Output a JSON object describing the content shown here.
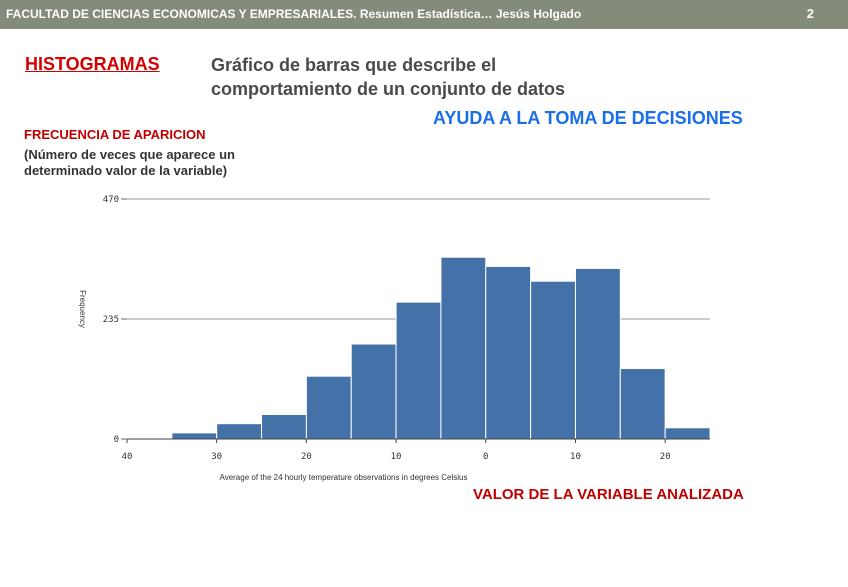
{
  "header": {
    "title": "FACULTAD DE CIENCIAS ECONOMICAS Y EMPRESARIALES. Resumen Estadística…  Jesús Holgado",
    "page": "2"
  },
  "slide": {
    "title": "HISTOGRAMAS",
    "subtitle_line1": "Gráfico de barras que describe el",
    "subtitle_line2": "comportamiento de un conjunto de datos",
    "ayuda": "AYUDA A LA TOMA DE DECISIONES",
    "freq_label": "FRECUENCIA DE APARICION",
    "freq_desc": "(Número de veces que aparece un determinado valor de la variable)",
    "valor_label": "VALOR DE LA VARIABLE ANALIZADA"
  },
  "colors": {
    "bar": "#4472a8",
    "header_bg": "#838b7b",
    "title_red": "#d40000",
    "accent_blue": "#1a6fe6"
  },
  "chart_data": {
    "type": "bar",
    "title": "",
    "xlabel": "Average of the 24 hourly temperature observations in degrees Celsius",
    "ylabel": "Frequency",
    "x_ticks": [
      "40",
      "30",
      "20",
      "10",
      "0",
      "10",
      "20"
    ],
    "y_ticks": [
      "0",
      "235",
      "470"
    ],
    "ylim": [
      0,
      510
    ],
    "bin_edges": [
      -40,
      -35,
      -30,
      -25,
      -20,
      -15,
      -10,
      -5,
      0,
      5,
      10,
      15,
      20,
      25
    ],
    "values": [
      2,
      12,
      30,
      48,
      123,
      186,
      268,
      356,
      338,
      309,
      334,
      138,
      22
    ],
    "grid": true
  }
}
